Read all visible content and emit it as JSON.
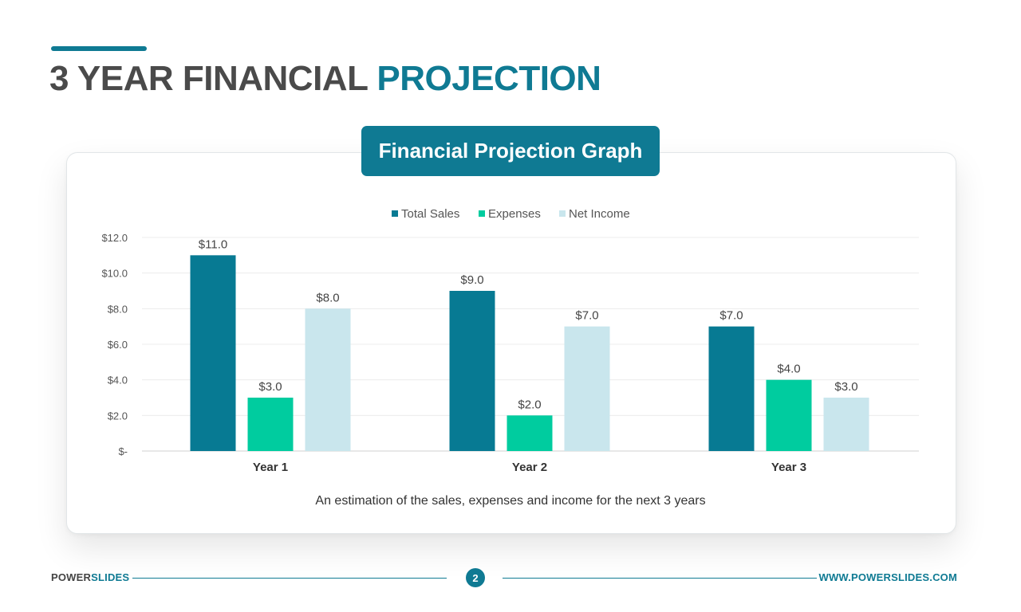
{
  "slide": {
    "title_main": "3 YEAR FINANCIAL",
    "title_highlight": "PROJECTION",
    "graph_title": "Financial Projection Graph",
    "caption": "An estimation of the sales, expenses and income for the next 3 years"
  },
  "footer": {
    "brand_prefix": "POWER",
    "brand_suffix": "SLIDES",
    "page_number": "2",
    "url": "WWW.POWERSLIDES.COM"
  },
  "colors": {
    "accent": "#0f7a93",
    "title_gray": "#4a4a4a",
    "total_sales": "#077a93",
    "expenses": "#00cc9f",
    "net_income": "#c9e6ed"
  },
  "chart_data": {
    "type": "bar",
    "categories": [
      "Year 1",
      "Year 2",
      "Year 3"
    ],
    "series": [
      {
        "name": "Total Sales",
        "values": [
          11.0,
          9.0,
          7.0
        ],
        "color": "#077a93"
      },
      {
        "name": "Expenses",
        "values": [
          3.0,
          2.0,
          4.0
        ],
        "color": "#00cc9f"
      },
      {
        "name": "Net Income",
        "values": [
          8.0,
          7.0,
          3.0
        ],
        "color": "#c9e6ed"
      }
    ],
    "data_labels": [
      [
        "$11.0",
        "$9.0",
        "$7.0"
      ],
      [
        "$3.0",
        "$2.0",
        "$4.0"
      ],
      [
        "$8.0",
        "$7.0",
        "$3.0"
      ]
    ],
    "yticks": [
      0,
      2,
      4,
      6,
      8,
      10,
      12
    ],
    "ytick_labels": [
      "$-",
      "$2.0",
      "$4.0",
      "$6.0",
      "$8.0",
      "$10.0",
      "$12.0"
    ],
    "ylim": [
      0,
      12
    ],
    "grid": true,
    "legend_position": "top-center"
  }
}
